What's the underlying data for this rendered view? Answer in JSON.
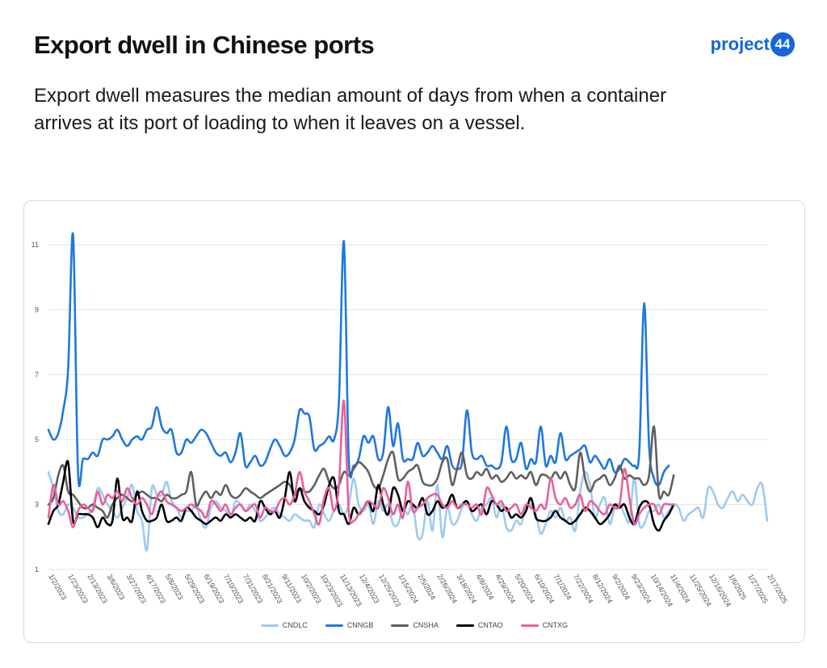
{
  "header": {
    "title": "Export dwell in Chinese ports",
    "subtitle": "Export dwell measures the median amount of days from when a container arrives at its port of loading to when it leaves on a vessel.",
    "logo_text": "project",
    "logo_badge": "44"
  },
  "chart_data": {
    "type": "line",
    "ylim": [
      1,
      11
    ],
    "yticks": [
      1,
      3,
      5,
      7,
      9,
      11
    ],
    "grid": true,
    "legend_position": "bottom",
    "x_tick_labels": [
      "1/2/2023",
      "1/23/2023",
      "2/13/2023",
      "3/6/2023",
      "3/27/2023",
      "4/17/2023",
      "5/8/2023",
      "5/29/2023",
      "6/19/2023",
      "7/10/2023",
      "7/31/2023",
      "8/21/2023",
      "9/11/2023",
      "10/2/2023",
      "10/23/2023",
      "11/13/2023",
      "12/4/2023",
      "12/25/2023",
      "1/15/2024",
      "2/5/2024",
      "2/26/2024",
      "3/18/2024",
      "4/8/2024",
      "4/29/2024",
      "5/20/2024",
      "6/10/2024",
      "7/1/2024",
      "7/22/2024",
      "8/12/2024",
      "9/2/2024",
      "9/23/2024",
      "10/14/2024",
      "11/4/2024",
      "11/25/2024",
      "12/16/2024",
      "1/6/2025",
      "1/27/2025",
      "2/17/2025"
    ],
    "series": [
      {
        "name": "CNDLC",
        "color": "#9ecaf0",
        "values": [
          4.0,
          3.5,
          2.8,
          2.7,
          3.0,
          2.9,
          2.6,
          2.6,
          2.7,
          2.9,
          3.5,
          3.3,
          3.0,
          2.8,
          2.6,
          2.9,
          3.2,
          3.6,
          2.8,
          2.5,
          1.6,
          3.5,
          3.3,
          3.3,
          3.7,
          3.1,
          2.9,
          2.6,
          2.8,
          2.8,
          3.0,
          2.5,
          2.3,
          2.9,
          3.1,
          2.9,
          2.8,
          2.6,
          3.1,
          3.0,
          2.8,
          3.0,
          2.8,
          2.5,
          2.6,
          2.8,
          2.9,
          2.7,
          2.6,
          2.5,
          2.7,
          2.6,
          2.5,
          2.5,
          2.3,
          3.0,
          2.7,
          2.5,
          2.8,
          3.0,
          2.7,
          3.0,
          3.8,
          3.0,
          2.8,
          3.0,
          2.4,
          3.1,
          2.8,
          3.0,
          2.4,
          2.4,
          2.9,
          2.7,
          3.0,
          2.0,
          2.1,
          3.1,
          2.2,
          3.6,
          2.0,
          2.9,
          2.4,
          2.5,
          2.9,
          3.1,
          2.7,
          2.5,
          2.9,
          3.0,
          3.2,
          2.6,
          3.0,
          2.3,
          2.2,
          2.5,
          2.4,
          2.9,
          3.0,
          2.7,
          2.1,
          2.4,
          2.8,
          2.6,
          2.9,
          2.5,
          2.6,
          2.2,
          3.4,
          4.0,
          3.6,
          2.6,
          3.0,
          3.2,
          2.4,
          2.9,
          3.0,
          2.7,
          2.5,
          3.8,
          2.4,
          2.4,
          2.8,
          2.8,
          3.0,
          2.6,
          2.8,
          3.0,
          2.9,
          2.5,
          2.7,
          2.8,
          2.9,
          2.6,
          3.5,
          3.4,
          3.0,
          2.9,
          3.2,
          3.4,
          3.1,
          3.3,
          3.1,
          3.0,
          3.5,
          3.6,
          2.5
        ]
      },
      {
        "name": "CNNGB",
        "color": "#1f77e0",
        "values": [
          5.3,
          5.0,
          5.2,
          5.9,
          7.2,
          11.3,
          4.0,
          4.4,
          4.4,
          4.6,
          4.5,
          5.0,
          5.0,
          5.1,
          5.3,
          5.0,
          4.8,
          5.0,
          5.1,
          5.0,
          5.3,
          5.4,
          6.0,
          5.4,
          5.2,
          5.3,
          4.6,
          4.6,
          5.0,
          4.9,
          5.1,
          5.3,
          5.2,
          4.9,
          4.6,
          4.5,
          4.6,
          4.3,
          4.6,
          5.2,
          4.2,
          4.3,
          4.5,
          4.2,
          4.3,
          4.7,
          5.0,
          4.8,
          4.5,
          4.6,
          5.0,
          5.9,
          5.8,
          5.7,
          4.7,
          4.8,
          4.9,
          5.1,
          5.0,
          6.2,
          11.1,
          4.4,
          4.2,
          4.4,
          5.1,
          4.9,
          5.1,
          4.4,
          4.6,
          6.0,
          4.8,
          5.5,
          4.4,
          4.4,
          4.4,
          4.9,
          4.5,
          4.6,
          4.8,
          4.6,
          4.4,
          4.8,
          4.2,
          4.1,
          4.3,
          5.9,
          4.6,
          4.4,
          4.5,
          4.2,
          4.2,
          4.1,
          4.3,
          5.4,
          4.4,
          4.4,
          4.9,
          4.1,
          4.4,
          4.3,
          5.4,
          4.2,
          4.5,
          4.3,
          5.2,
          4.4,
          4.5,
          4.6,
          4.7,
          4.8,
          4.3,
          4.5,
          4.3,
          4.1,
          4.4,
          4.0,
          4.1,
          4.4,
          4.3,
          4.2,
          4.6,
          9.2,
          4.8,
          3.8,
          3.6,
          4.0,
          4.2
        ]
      },
      {
        "name": "CNSHA",
        "color": "#5f5f5f",
        "values": [
          3.0,
          3.2,
          3.9,
          4.2,
          3.4,
          3.3,
          3.1,
          2.9,
          2.9,
          3.0,
          2.9,
          2.8,
          2.6,
          3.0,
          3.2,
          3.3,
          3.2,
          3.1,
          3.3,
          3.4,
          3.3,
          3.2,
          3.2,
          3.1,
          3.3,
          3.2,
          3.2,
          3.3,
          3.4,
          4.0,
          3.0,
          3.2,
          3.4,
          3.2,
          3.4,
          3.3,
          3.6,
          3.3,
          3.2,
          3.3,
          3.5,
          3.4,
          3.3,
          3.2,
          3.3,
          3.4,
          3.5,
          3.6,
          3.7,
          3.6,
          3.3,
          3.5,
          3.4,
          3.4,
          3.6,
          3.9,
          4.1,
          3.7,
          3.5,
          3.6,
          4.0,
          3.9,
          4.1,
          4.3,
          4.2,
          4.0,
          3.6,
          3.5,
          3.9,
          4.4,
          4.6,
          3.8,
          3.8,
          4.0,
          4.1,
          4.2,
          3.7,
          3.6,
          3.6,
          3.8,
          4.3,
          4.4,
          3.6,
          4.1,
          4.6,
          3.9,
          3.8,
          4.0,
          3.9,
          4.1,
          3.8,
          3.9,
          3.7,
          3.8,
          4.0,
          3.8,
          3.9,
          3.8,
          4.0,
          3.6,
          3.9,
          3.9,
          3.8,
          4.0,
          3.8,
          4.0,
          3.6,
          3.5,
          4.6,
          3.8,
          3.4,
          3.7,
          3.8,
          3.9,
          3.6,
          3.8,
          4.2,
          3.8,
          3.9,
          3.8,
          3.8,
          3.6,
          3.9,
          5.4,
          3.3,
          3.4,
          3.3,
          3.9
        ]
      },
      {
        "name": "CNTAO",
        "color": "#000000",
        "values": [
          2.4,
          2.8,
          3.0,
          3.7,
          4.3,
          2.5,
          2.7,
          2.7,
          2.7,
          2.6,
          2.3,
          2.6,
          2.4,
          2.5,
          3.8,
          2.6,
          2.6,
          2.5,
          3.4,
          2.8,
          2.5,
          2.5,
          2.6,
          3.0,
          2.5,
          2.5,
          2.6,
          2.5,
          2.9,
          2.8,
          2.6,
          2.5,
          2.4,
          2.5,
          2.6,
          2.5,
          2.7,
          2.6,
          2.7,
          2.6,
          2.5,
          2.6,
          2.5,
          3.1,
          2.9,
          2.7,
          2.8,
          2.6,
          3.2,
          4.0,
          3.1,
          3.5,
          3.1,
          2.9,
          2.8,
          2.7,
          3.0,
          3.6,
          3.8,
          2.8,
          2.7,
          2.4,
          2.9,
          2.7,
          2.9,
          3.1,
          2.8,
          3.6,
          3.0,
          2.7,
          3.5,
          3.3,
          2.8,
          3.1,
          3.0,
          2.9,
          3.2,
          2.7,
          2.8,
          3.1,
          2.9,
          3.0,
          3.3,
          2.9,
          3.0,
          3.1,
          2.8,
          2.9,
          3.0,
          2.7,
          3.1,
          3.0,
          2.8,
          2.9,
          2.6,
          2.7,
          2.6,
          2.8,
          3.2,
          2.6,
          2.5,
          2.5,
          2.6,
          2.8,
          2.6,
          2.5,
          2.4,
          2.5,
          2.7,
          2.9,
          2.8,
          2.6,
          2.4,
          2.5,
          2.7,
          3.0,
          2.9,
          3.0,
          2.6,
          2.4,
          2.9,
          3.1,
          3.0,
          2.4,
          2.2,
          2.5,
          2.7,
          3.0
        ]
      },
      {
        "name": "CNTXG",
        "color": "#e8609a",
        "values": [
          2.6,
          3.6,
          3.0,
          3.1,
          2.8,
          2.3,
          2.8,
          3.0,
          2.9,
          2.8,
          3.4,
          3.0,
          3.3,
          3.2,
          3.4,
          3.1,
          3.5,
          3.2,
          3.0,
          3.2,
          3.0,
          2.7,
          3.2,
          3.4,
          3.1,
          3.0,
          2.9,
          2.8,
          2.9,
          3.0,
          2.9,
          2.8,
          2.6,
          3.1,
          3.0,
          2.8,
          3.0,
          2.7,
          2.9,
          3.0,
          2.8,
          2.9,
          3.0,
          2.6,
          2.9,
          2.8,
          2.8,
          3.1,
          3.2,
          3.0,
          3.3,
          4.0,
          3.4,
          3.1,
          2.7,
          2.4,
          3.2,
          3.5,
          2.8,
          3.6,
          6.2,
          2.8,
          2.5,
          2.7,
          2.9,
          3.1,
          3.0,
          2.9,
          3.5,
          3.2,
          2.7,
          3.0,
          2.6,
          3.7,
          2.8,
          2.9,
          3.0,
          3.2,
          3.3,
          3.3,
          3.0,
          2.9,
          3.1,
          2.9,
          3.0,
          3.0,
          2.9,
          3.0,
          2.7,
          3.5,
          3.3,
          3.0,
          3.1,
          2.8,
          2.9,
          3.0,
          2.7,
          3.0,
          2.9,
          2.8,
          3.0,
          2.9,
          3.8,
          3.2,
          3.0,
          3.2,
          2.9,
          3.0,
          3.3,
          2.8,
          3.1,
          3.0,
          2.8,
          2.7,
          3.0,
          2.9,
          3.0,
          4.1,
          3.2,
          2.4,
          2.7,
          2.9,
          3.0,
          3.0,
          2.7,
          3.0,
          3.0,
          3.0
        ]
      }
    ]
  }
}
